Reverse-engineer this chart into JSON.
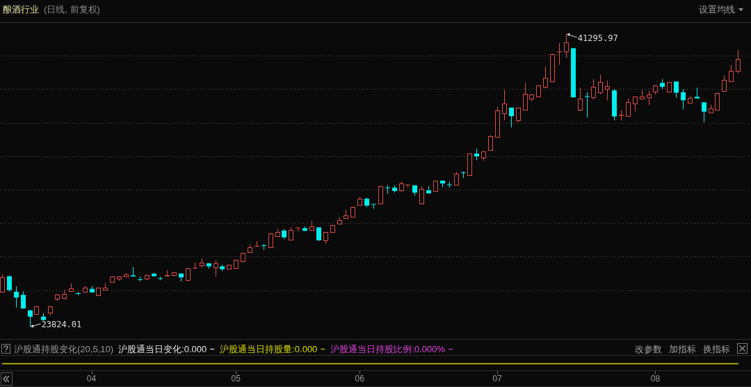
{
  "chart_data": [
    {
      "type": "candlestick",
      "title": "酿酒行业",
      "subtitle": "(日线, 前复权)",
      "categories": [
        null,
        null,
        null,
        null,
        null,
        null,
        null,
        null,
        null,
        null,
        null,
        null,
        null,
        "04",
        null,
        null,
        null,
        null,
        null,
        null,
        null,
        null,
        null,
        null,
        null,
        null,
        null,
        null,
        null,
        null,
        null,
        null,
        null,
        null,
        "05",
        null,
        null,
        null,
        null,
        null,
        null,
        null,
        null,
        null,
        null,
        null,
        null,
        null,
        null,
        null,
        null,
        null,
        "06",
        null,
        null,
        null,
        null,
        null,
        null,
        null,
        null,
        null,
        null,
        null,
        null,
        null,
        null,
        null,
        null,
        null,
        null,
        null,
        "07",
        null,
        null,
        null,
        null,
        null,
        null,
        null,
        null,
        null,
        null,
        null,
        null,
        null,
        null,
        null,
        null,
        null,
        null,
        null,
        null,
        null,
        null,
        "08",
        null,
        null,
        null,
        null,
        null,
        null,
        null,
        null,
        null,
        null,
        null,
        null
      ],
      "tick_labels": "x",
      "ohlc": [
        [
          25900,
          26940,
          25860,
          26760
        ],
        [
          26830,
          26870,
          25930,
          26000
        ],
        [
          25900,
          26220,
          24960,
          25560
        ],
        [
          25720,
          25930,
          24880,
          24900
        ],
        [
          24790,
          24820,
          23824.01,
          24410
        ],
        [
          24570,
          25060,
          24540,
          25030
        ],
        [
          24420,
          24630,
          24200,
          24210
        ],
        [
          24650,
          25060,
          24490,
          25040
        ],
        [
          25480,
          25760,
          25350,
          25720
        ],
        [
          25540,
          26030,
          25440,
          25760
        ],
        [
          25950,
          26410,
          25950,
          26090
        ],
        [
          25800,
          25900,
          25690,
          25790
        ],
        [
          25900,
          26250,
          25860,
          26150
        ],
        [
          26080,
          26260,
          25850,
          25860
        ],
        [
          25690,
          26140,
          25690,
          26140
        ],
        [
          26040,
          26410,
          26030,
          26140
        ],
        [
          26460,
          26830,
          26450,
          26810
        ],
        [
          26700,
          26830,
          26560,
          26800
        ],
        [
          26800,
          27010,
          26790,
          26940
        ],
        [
          26900,
          27390,
          26820,
          26830
        ],
        [
          26630,
          26800,
          26520,
          26620
        ],
        [
          26700,
          26920,
          26590,
          26910
        ],
        [
          26980,
          27050,
          26810,
          26830
        ],
        [
          26700,
          26800,
          26590,
          26690
        ],
        [
          26840,
          27190,
          26840,
          26910
        ],
        [
          26900,
          27080,
          26890,
          27080
        ],
        [
          26990,
          27000,
          26520,
          26760
        ],
        [
          26590,
          27320,
          26540,
          27310
        ],
        [
          27290,
          27660,
          27280,
          27330
        ],
        [
          27480,
          27900,
          27350,
          27630
        ],
        [
          27600,
          27620,
          27280,
          27420
        ],
        [
          27350,
          27770,
          26800,
          27590
        ],
        [
          27420,
          27520,
          27140,
          27250
        ],
        [
          27250,
          27510,
          27240,
          27500
        ],
        [
          27300,
          27830,
          27290,
          27820
        ],
        [
          27730,
          28240,
          27650,
          28230
        ],
        [
          28250,
          28730,
          28240,
          28560
        ],
        [
          28600,
          28920,
          28590,
          28640
        ],
        [
          28670,
          28760,
          28390,
          28650
        ],
        [
          28560,
          29430,
          28530,
          29390
        ],
        [
          29220,
          29660,
          29210,
          29470
        ],
        [
          29560,
          29630,
          29050,
          29150
        ],
        [
          29010,
          29750,
          29000,
          29600
        ],
        [
          29700,
          29750,
          29500,
          29740
        ],
        [
          29700,
          29800,
          29530,
          29540
        ],
        [
          29580,
          30160,
          29570,
          29790
        ],
        [
          29750,
          29760,
          28940,
          28980
        ],
        [
          28980,
          29480,
          28760,
          29470
        ],
        [
          29470,
          29900,
          29460,
          29880
        ],
        [
          29950,
          30350,
          29940,
          30160
        ],
        [
          30290,
          30810,
          30270,
          30480
        ],
        [
          30390,
          30990,
          30380,
          30980
        ],
        [
          31090,
          31570,
          31080,
          31460
        ],
        [
          31460,
          31530,
          30950,
          31050
        ],
        [
          31140,
          31150,
          30850,
          31120
        ],
        [
          31160,
          32240,
          31140,
          32220
        ],
        [
          32120,
          32260,
          31740,
          32110
        ],
        [
          32120,
          32260,
          31820,
          31920
        ],
        [
          31960,
          32490,
          31880,
          32360
        ],
        [
          32280,
          32300,
          32150,
          32290
        ],
        [
          32260,
          32270,
          31640,
          31820
        ],
        [
          31180,
          32200,
          31170,
          32030
        ],
        [
          31960,
          32200,
          31770,
          31780
        ],
        [
          31920,
          32550,
          31910,
          32540
        ],
        [
          32540,
          32550,
          32150,
          32370
        ],
        [
          32300,
          32470,
          32120,
          32290
        ],
        [
          32290,
          33070,
          32280,
          32950
        ],
        [
          33030,
          33090,
          32700,
          33010
        ],
        [
          32880,
          34170,
          32870,
          34160
        ],
        [
          34160,
          34450,
          33750,
          33990
        ],
        [
          33900,
          34310,
          33710,
          34300
        ],
        [
          34370,
          35270,
          34350,
          35210
        ],
        [
          35170,
          36940,
          35150,
          36720
        ],
        [
          36560,
          37970,
          36160,
          37140
        ],
        [
          36900,
          36910,
          35720,
          36390
        ],
        [
          36160,
          36910,
          36020,
          36900
        ],
        [
          36760,
          38380,
          36740,
          37730
        ],
        [
          37420,
          37720,
          37270,
          37690
        ],
        [
          37560,
          38250,
          37550,
          38240
        ],
        [
          38140,
          39350,
          38050,
          38690
        ],
        [
          38490,
          40120,
          38420,
          40110
        ],
        [
          40230,
          40760,
          39460,
          40250
        ],
        [
          40250,
          41295.97,
          39870,
          40800
        ],
        [
          40450,
          40460,
          37490,
          37520
        ],
        [
          36760,
          38100,
          36690,
          37450
        ],
        [
          37570,
          37820,
          36300,
          37560
        ],
        [
          37520,
          38600,
          37380,
          38140
        ],
        [
          37820,
          38880,
          37690,
          38420
        ],
        [
          38010,
          38520,
          37340,
          38180
        ],
        [
          37930,
          38010,
          36140,
          36370
        ],
        [
          36420,
          36760,
          36140,
          36480
        ],
        [
          36390,
          37450,
          36370,
          37220
        ],
        [
          37160,
          37560,
          36660,
          37550
        ],
        [
          37420,
          37960,
          37380,
          37560
        ],
        [
          37510,
          37900,
          37040,
          37670
        ],
        [
          37840,
          38250,
          37690,
          38240
        ],
        [
          38380,
          38600,
          38010,
          38140
        ],
        [
          37840,
          38430,
          37820,
          38420
        ],
        [
          38460,
          38470,
          37490,
          37790
        ],
        [
          37820,
          38010,
          36800,
          37340
        ],
        [
          37180,
          37590,
          37160,
          37490
        ],
        [
          37550,
          38100,
          37440,
          37450
        ],
        [
          37220,
          37230,
          36030,
          36660
        ],
        [
          36590,
          37080,
          36580,
          36840
        ],
        [
          36760,
          37780,
          36750,
          37770
        ],
        [
          37890,
          38840,
          37880,
          38540
        ],
        [
          38490,
          39460,
          38470,
          39110
        ],
        [
          39080,
          40350,
          38930,
          39800
        ]
      ],
      "colors": [
        "#e04a44",
        "#00eeee",
        "#00eeee",
        "#00eeee",
        "#00eeee",
        "#e04a44",
        "#00eeee",
        "#e04a44",
        "#e04a44",
        "#e04a44",
        "#e04a44",
        "#00eeee",
        "#e04a44",
        "#00eeee",
        "#e04a44",
        "#e04a44",
        "#e04a44",
        "#e04a44",
        "#e04a44",
        "#00eeee",
        "#00eeee",
        "#e04a44",
        "#00eeee",
        "#00eeee",
        "#e04a44",
        "#e04a44",
        "#00eeee",
        "#e04a44",
        "#e04a44",
        "#e04a44",
        "#00eeee",
        "#e04a44",
        "#00eeee",
        "#e04a44",
        "#e04a44",
        "#e04a44",
        "#e04a44",
        "#e04a44",
        "#00eeee",
        "#e04a44",
        "#e04a44",
        "#00eeee",
        "#e04a44",
        "#e04a44",
        "#00eeee",
        "#e04a44",
        "#00eeee",
        "#e04a44",
        "#e04a44",
        "#e04a44",
        "#e04a44",
        "#e04a44",
        "#e04a44",
        "#00eeee",
        "#00eeee",
        "#e04a44",
        "#00eeee",
        "#00eeee",
        "#e04a44",
        "#e04a44",
        "#00eeee",
        "#e04a44",
        "#00eeee",
        "#e04a44",
        "#00eeee",
        "#00eeee",
        "#e04a44",
        "#00eeee",
        "#e04a44",
        "#00eeee",
        "#e04a44",
        "#e04a44",
        "#e04a44",
        "#e04a44",
        "#00eeee",
        "#e04a44",
        "#e04a44",
        "#e04a44",
        "#e04a44",
        "#e04a44",
        "#e04a44",
        "#e04a44",
        "#e04a44",
        "#00eeee",
        "#e04a44",
        "#00eeee",
        "#e04a44",
        "#e04a44",
        "#e04a44",
        "#00eeee",
        "#e04a44",
        "#e04a44",
        "#e04a44",
        "#e04a44",
        "#e04a44",
        "#e04a44",
        "#00eeee",
        "#e04a44",
        "#00eeee",
        "#00eeee",
        "#e04a44",
        "#00eeee",
        "#00eeee",
        "#e04a44",
        "#e04a44",
        "#e04a44",
        "#e04a44",
        "#e04a44"
      ],
      "yticks": [
        {
          "value": 26000,
          "label": null
        },
        {
          "value": 28000,
          "label": null
        },
        {
          "value": 30000,
          "label": null
        },
        {
          "value": 32000,
          "label": null
        },
        {
          "value": 34000,
          "label": null
        },
        {
          "value": 36000,
          "label": null
        },
        {
          "value": 38000,
          "label": null
        },
        {
          "value": 40000,
          "label": null
        }
      ],
      "grid": "y",
      "annotations": [
        "设置均线",
        "41295.97",
        "23824.01"
      ]
    },
    {
      "type": "other",
      "title": "沪股通持股变化(20,5,10)",
      "legend": "top left",
      "series": [
        {
          "name": "沪股通当日变化:0.000",
          "color": "#e6e6e6"
        },
        {
          "name": "沪股通当日持股量:0.000",
          "color": "#d8d800"
        },
        {
          "name": "沪股通当日持股比例:0.000%",
          "color": "#e040e0"
        }
      ],
      "annotations": [
        "改参数",
        "加指标",
        "换指标"
      ]
    }
  ]
}
